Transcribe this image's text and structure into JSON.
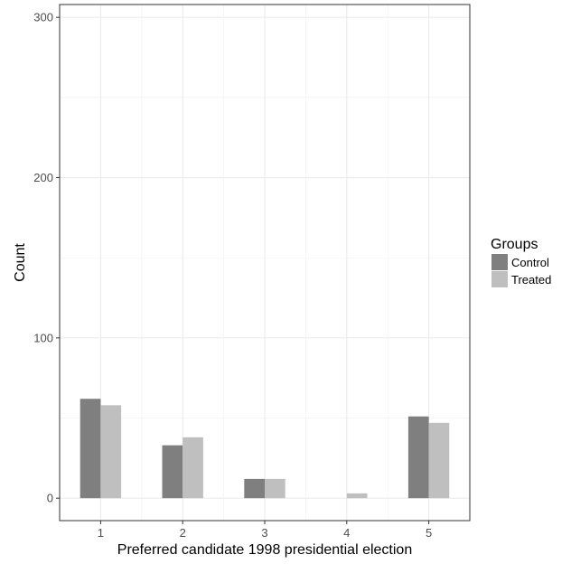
{
  "chart_data": {
    "type": "bar",
    "xlabel": "Preferred candidate 1998 presidential election",
    "ylabel": "Count",
    "categories": [
      "1",
      "2",
      "3",
      "4",
      "5"
    ],
    "ylim": [
      -14,
      308
    ],
    "yticks": [
      0,
      100,
      200,
      300
    ],
    "grid": true,
    "legend": {
      "title": "Groups",
      "placement": "right"
    },
    "series": [
      {
        "name": "Control",
        "color": "#7f7f7f",
        "values": [
          62,
          33,
          12,
          0,
          51
        ]
      },
      {
        "name": "Treated",
        "color": "#bfbfbf",
        "values": [
          58,
          38,
          12,
          3,
          47
        ]
      }
    ]
  }
}
